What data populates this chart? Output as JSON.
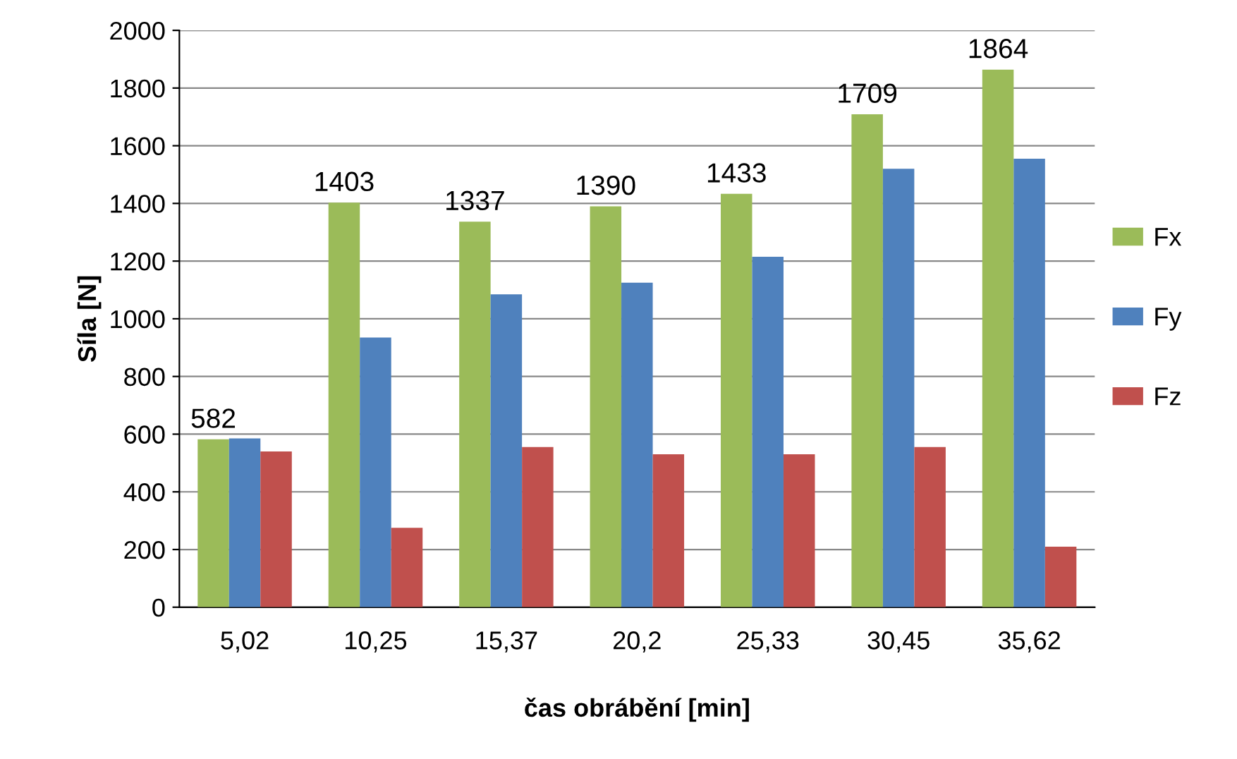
{
  "chart_data": {
    "type": "bar",
    "xlabel": "čas obrábění [min]",
    "ylabel": "Síla [N]",
    "categories": [
      "5,02",
      "10,25",
      "15,37",
      "20,2",
      "25,33",
      "30,45",
      "35,62"
    ],
    "series": [
      {
        "name": "Fx",
        "color": "#9bbb59",
        "values": [
          582,
          1403,
          1337,
          1390,
          1433,
          1709,
          1864
        ],
        "value_labels": [
          "582",
          "1403",
          "1337",
          "1390",
          "1433",
          "1709",
          "1864"
        ]
      },
      {
        "name": "Fy",
        "color": "#4f81bd",
        "values": [
          585,
          935,
          1085,
          1125,
          1215,
          1520,
          1555
        ]
      },
      {
        "name": "Fz",
        "color": "#c0504d",
        "values": [
          540,
          275,
          555,
          530,
          530,
          555,
          210
        ]
      }
    ],
    "ylim": [
      0,
      2000
    ],
    "yticks": [
      0,
      200,
      400,
      600,
      800,
      1000,
      1200,
      1400,
      1600,
      1800,
      2000
    ],
    "grid": "y",
    "legend": "right"
  }
}
